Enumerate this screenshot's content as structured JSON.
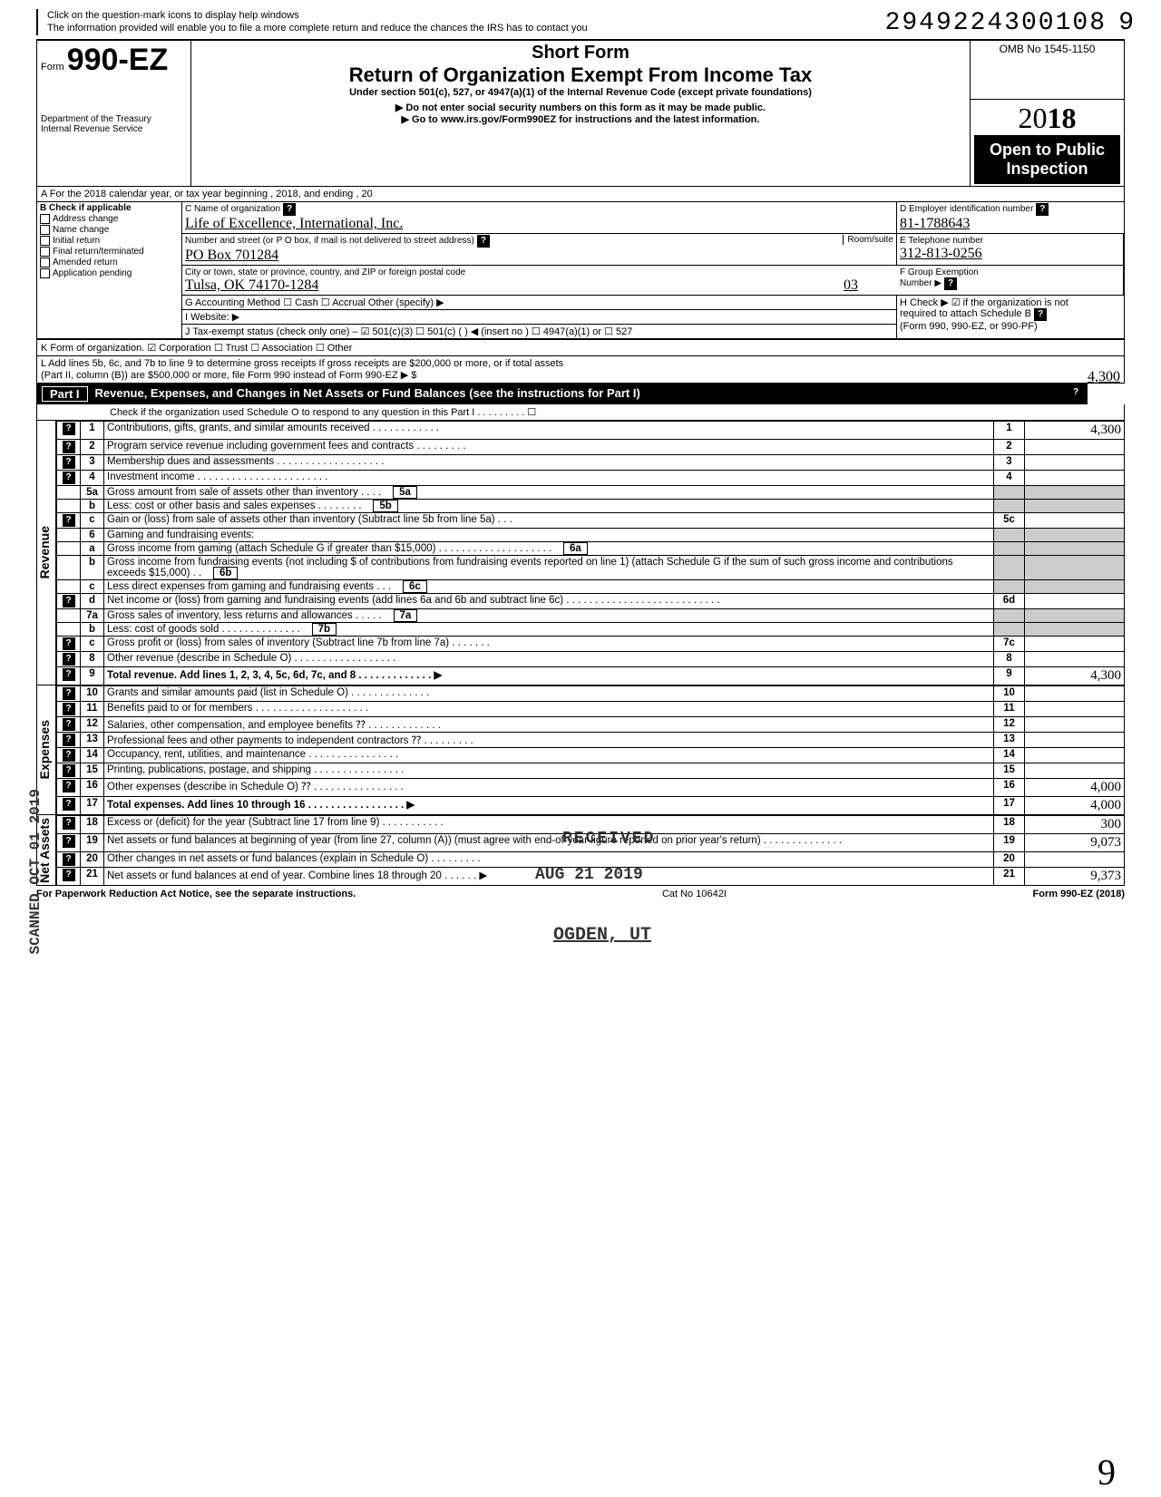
{
  "doc_number": "2949224300108",
  "doc_number_extra": "9",
  "page_bottom": "9",
  "top_note_l1": "Click on the question-mark icons to display help windows",
  "top_note_l2": "The information provided will enable you to file a more complete return and reduce the chances the IRS has to contact you",
  "header": {
    "form_prefix": "Form",
    "form_number": "990-EZ",
    "dept_l1": "Department of the Treasury",
    "dept_l2": "Internal Revenue Service",
    "short_form": "Short Form",
    "title": "Return of Organization Exempt From Income Tax",
    "under": "Under section 501(c), 527, or 4947(a)(1) of the Internal Revenue Code (except private foundations)",
    "ssn_note": "▶ Do not enter social security numbers on this form as it may be made public.",
    "url_note": "▶ Go to www.irs.gov/Form990EZ for instructions and the latest information.",
    "omb": "OMB No 1545-1150",
    "year_prefix": "20",
    "year_bold": "18",
    "open": "Open to Public Inspection"
  },
  "line_a": "A  For the 2018 calendar year, or tax year beginning                                                            , 2018, and ending                                          , 20",
  "section_b": {
    "header": "B Check if applicable",
    "items": [
      "Address change",
      "Name change",
      "Initial return",
      "Final return/terminated",
      "Amended return",
      "Application pending"
    ]
  },
  "section_c": {
    "label_name": "C Name of organization",
    "name": "Life of Excellence, International, Inc.",
    "label_addr": "Number and street (or P O  box, if mail is not delivered to street address)",
    "room": "Room/suite",
    "addr": "PO Box 701284",
    "label_city": "City or town, state or province, country, and ZIP or foreign postal code",
    "city": "Tulsa, OK   74170-1284",
    "room_val": "03"
  },
  "section_d": {
    "label": "D Employer identification number",
    "val": "81-1788643"
  },
  "section_e": {
    "label": "E Telephone number",
    "val": "312-813-0256"
  },
  "section_f": {
    "label": "F Group Exemption",
    "label2": "Number ▶"
  },
  "line_g": "G Accounting Method      ☐ Cash    ☐ Accrual    Other (specify) ▶",
  "line_h": {
    "l1": "H Check ▶ ☑ if the organization is not",
    "l2": "required to attach Schedule B",
    "l3": "(Form 990, 990-EZ, or 990-PF)"
  },
  "line_i": "I  Website: ▶",
  "line_j": "J Tax-exempt status (check only one) –  ☑ 501(c)(3)   ☐ 501(c) (       ) ◀ (insert no ) ☐ 4947(a)(1) or   ☐ 527",
  "line_k": "K Form of organization.   ☑ Corporation     ☐ Trust            ☐ Association     ☐ Other",
  "line_l": {
    "l1": "L Add lines 5b, 6c, and 7b to line 9 to determine gross receipts  If gross receipts are $200,000 or more, or if total assets",
    "l2": "(Part II, column (B)) are $500,000 or more, file Form 990 instead of Form 990-EZ                                                                          ▶  $",
    "val": "4,300"
  },
  "part1": {
    "tag": "Part I",
    "title": "Revenue, Expenses, and Changes in Net Assets or Fund Balances (see the instructions for Part I)",
    "sub": "Check if the organization used Schedule O to respond to any question in this Part I  .  .  .  .  .  .  .  .  .  ☐"
  },
  "sides": {
    "revenue": "Revenue",
    "expenses": "Expenses",
    "netassets": "Net Assets",
    "scanned": "SCANNED OCT 01 2019"
  },
  "lines": {
    "l1": {
      "n": "1",
      "t": "Contributions, gifts, grants, and similar amounts received .   .   .   .   .   .   .   .   .   .   .   .",
      "box": "1",
      "v": "4,300"
    },
    "l2": {
      "n": "2",
      "t": "Program service revenue including government fees and contracts   .   .   .   .   .   .   .   .   .",
      "box": "2",
      "v": ""
    },
    "l3": {
      "n": "3",
      "t": "Membership dues and assessments .   .   .   .   .   .   .   .   .   .   .   .   .   .   .   .   .   .   .",
      "box": "3",
      "v": ""
    },
    "l4": {
      "n": "4",
      "t": "Investment income   .   .   .   .   .   .   .   .   .   .   .   .   .   .   .   .   .   .   .   .   .   .   .",
      "box": "4",
      "v": ""
    },
    "l5a": {
      "n": "5a",
      "t": "Gross amount from sale of assets other than inventory   .   .   .   .",
      "box": "5a"
    },
    "l5b": {
      "n": "b",
      "t": "Less: cost or other basis and sales expenses .   .   .   .   .   .   .   .",
      "box": "5b"
    },
    "l5c": {
      "n": "c",
      "t": "Gain or (loss) from sale of assets other than inventory (Subtract line 5b from line 5a)  .   .   .",
      "box": "5c",
      "v": ""
    },
    "l6": {
      "n": "6",
      "t": "Gaming and fundraising events:"
    },
    "l6a": {
      "n": "a",
      "t": "Gross income from gaming (attach Schedule G if greater than $15,000) .   .   .   .   .   .   .   .   .   .   .   .   .   .   .   .   .   .   .   .",
      "box": "6a"
    },
    "l6b": {
      "n": "b",
      "t": "Gross income from fundraising events (not including  $                              of contributions from fundraising events reported on line 1) (attach Schedule G if the sum of such gross income and contributions exceeds $15,000) .   .",
      "box": "6b"
    },
    "l6c": {
      "n": "c",
      "t": "Less  direct expenses from gaming and fundraising events   .   .   .",
      "box": "6c"
    },
    "l6d": {
      "n": "d",
      "t": "Net income or (loss) from gaming and fundraising events (add lines 6a and 6b and subtract line 6c)   .   .   .   .   .   .   .   .   .   .   .   .   .   .   .   .   .   .   .   .   .   .   .   .   .   .   .",
      "box": "6d",
      "v": ""
    },
    "l7a": {
      "n": "7a",
      "t": "Gross sales of inventory, less returns and allowances  .   .   .   .   .",
      "box": "7a"
    },
    "l7b": {
      "n": "b",
      "t": "Less: cost of goods sold    .   .   .   .   .   .   .   .   .   .   .   .   .   .",
      "box": "7b"
    },
    "l7c": {
      "n": "c",
      "t": "Gross profit or (loss) from sales of inventory (Subtract line 7b from line 7a)  .   .   .   .   .   .   .",
      "box": "7c",
      "v": ""
    },
    "l8": {
      "n": "8",
      "t": "Other revenue (describe in Schedule O) .   .   .   .   .   .   .   .   .   .   .   .   .   .   .   .   .   .",
      "box": "8",
      "v": ""
    },
    "l9": {
      "n": "9",
      "t": "Total revenue. Add lines 1, 2, 3, 4, 5c, 6d, 7c, and 8   .   .   .   .   .   .   .   .   .   .   .   .   .  ▶",
      "box": "9",
      "v": "4,300",
      "bold": true
    },
    "l10": {
      "n": "10",
      "t": "Grants and similar amounts paid (list in Schedule O)   .   .   .   .   .   .   .   .   .   .   .   .   .   .",
      "box": "10",
      "v": ""
    },
    "l11": {
      "n": "11",
      "t": "Benefits paid to or for members   .   .   .   .   .   .   .   .   .   .   .   .   .   .   .   .   .   .   .   .",
      "box": "11",
      "v": ""
    },
    "l12": {
      "n": "12",
      "t": "Salaries, other compensation, and employee benefits ⁇  .   .   .   .   .   .   .   .   .   .   .   .   .",
      "box": "12",
      "v": ""
    },
    "l13": {
      "n": "13",
      "t": "Professional fees and other payments to independent contractors ⁇ .   .   .   .   .   .   .   .   .",
      "box": "13",
      "v": ""
    },
    "l14": {
      "n": "14",
      "t": "Occupancy, rent, utilities, and maintenance   .   .   .   .   .   .   .   .   .   .   .   .   .   .   .   .",
      "box": "14",
      "v": ""
    },
    "l15": {
      "n": "15",
      "t": "Printing, publications, postage, and shipping   .   .   .   .   .   .   .   .   .   .   .   .   .   .   .   .",
      "box": "15",
      "v": ""
    },
    "l16": {
      "n": "16",
      "t": "Other expenses (describe in Schedule O) ⁇   .   .   .   .   .   .   .   .   .   .   .   .   .   .   .   .",
      "box": "16",
      "v": "4,000"
    },
    "l17": {
      "n": "17",
      "t": "Total expenses. Add lines 10 through 16 .   .   .   .   .   .   .   .   .   .   .   .   .   .   .   .   .  ▶",
      "box": "17",
      "v": "4,000",
      "bold": true
    },
    "l18": {
      "n": "18",
      "t": "Excess or (deficit) for the year (Subtract line 17 from line 9)    .   .   .   .   .   .   .   .   .   .   .",
      "box": "18",
      "v": "300"
    },
    "l19": {
      "n": "19",
      "t": "Net assets or fund balances at beginning of year (from line 27, column (A)) (must agree with end-of-year figure reported on prior year's return)    .   .   .   .   .   .   .   .   .   .   .   .   .   .",
      "box": "19",
      "v": "9,073"
    },
    "l20": {
      "n": "20",
      "t": "Other changes in net assets or fund balances (explain in Schedule O) .   .   .   .   .   .   .   .   .",
      "box": "20",
      "v": ""
    },
    "l21": {
      "n": "21",
      "t": "Net assets or fund balances at end of year. Combine lines 18 through 20   .   .   .   .   .   .  ▶",
      "box": "21",
      "v": "9,373"
    }
  },
  "stamps": {
    "received": "RECEIVED",
    "date": "AUG 21 2019",
    "ogden": "OGDEN, UT"
  },
  "footer": {
    "left": "For Paperwork Reduction Act Notice, see the separate instructions.",
    "mid": "Cat  No  10642I",
    "right": "Form 990-EZ (2018)"
  }
}
